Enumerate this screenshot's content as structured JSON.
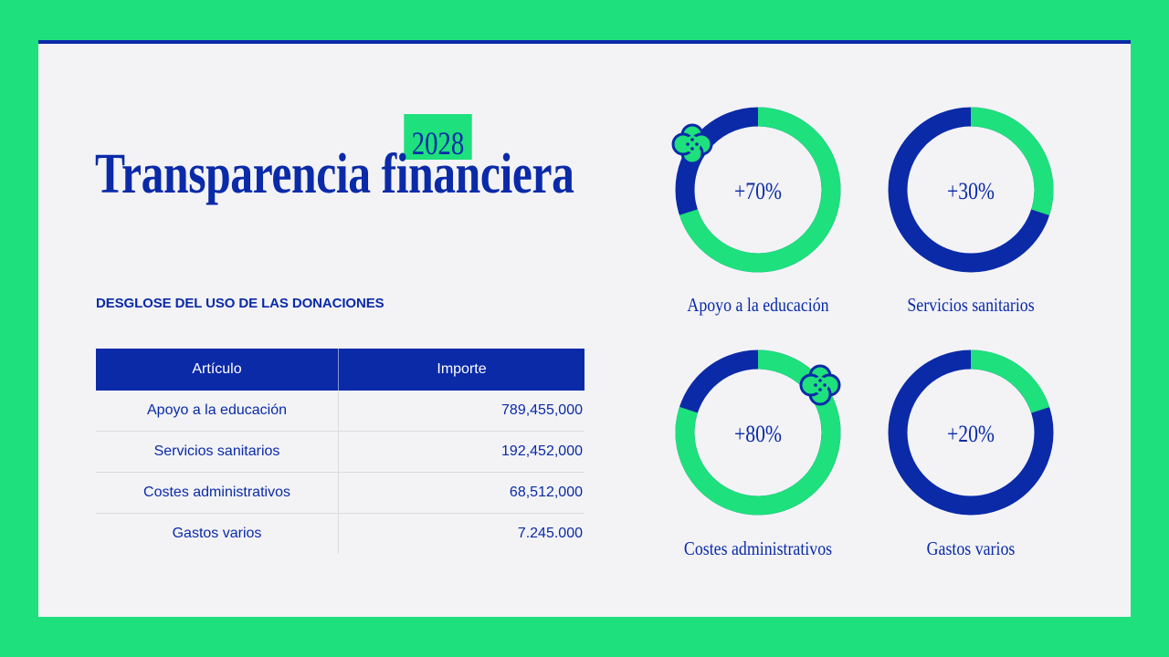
{
  "header": {
    "year": "2028",
    "title": "Transparencia financiera",
    "subtitle": "DESGLOSE DEL USO DE LAS DONACIONES"
  },
  "table": {
    "headers": [
      "Artículo",
      "Importe"
    ],
    "rows": [
      {
        "item": "Apoyo a la educación",
        "amount": "789,455,000"
      },
      {
        "item": "Servicios sanitarios",
        "amount": "192,452,000"
      },
      {
        "item": "Costes administrativos",
        "amount": "68,512,000"
      },
      {
        "item": "Gastos varios",
        "amount": "7.245.000"
      }
    ]
  },
  "colors": {
    "background": "#1ee07c",
    "panel": "#f3f3f6",
    "primary": "#0a2aa8",
    "accent": "#1ee07c"
  },
  "chart_data": [
    {
      "type": "pie",
      "label": "+70%",
      "name": "Apoyo a la educación",
      "value": 70
    },
    {
      "type": "pie",
      "label": "+30%",
      "name": "Servicios sanitarios",
      "value": 30
    },
    {
      "type": "pie",
      "label": "+80%",
      "name": "Costes administrativos",
      "value": 80
    },
    {
      "type": "pie",
      "label": "+20%",
      "name": "Gastos varios",
      "value": 20
    }
  ],
  "decorations": [
    {
      "icon": "clover-icon",
      "chart_index": 0
    },
    {
      "icon": "clover-icon",
      "chart_index": 2
    }
  ]
}
